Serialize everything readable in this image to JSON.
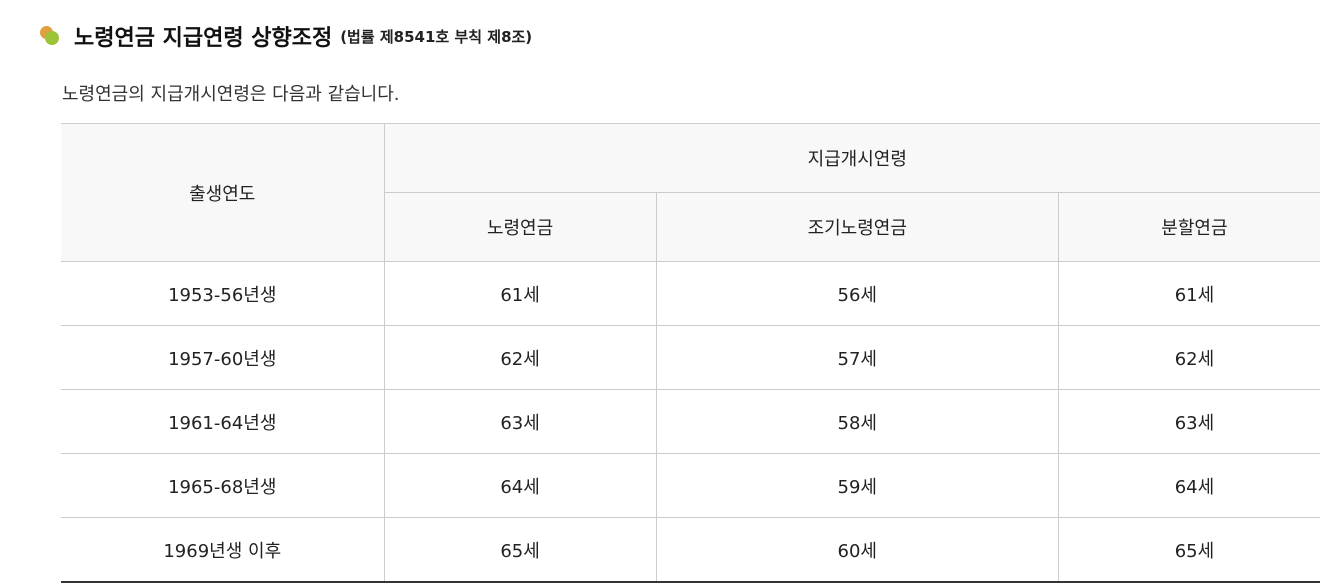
{
  "title": {
    "main": "노령연금 지급연령 상향조정",
    "sub": "(법률 제8541호 부칙 제8조)"
  },
  "description": "노령연금의 지급개시연령은 다음과 같습니다.",
  "table": {
    "header_birth": "출생연도",
    "header_group": "지급개시연령",
    "columns": [
      "노령연금",
      "조기노령연금",
      "분할연금"
    ],
    "rows": [
      [
        "1953-56년생",
        "61세",
        "56세",
        "61세"
      ],
      [
        "1957-60년생",
        "62세",
        "57세",
        "62세"
      ],
      [
        "1961-64년생",
        "63세",
        "58세",
        "63세"
      ],
      [
        "1965-68년생",
        "64세",
        "59세",
        "64세"
      ],
      [
        "1969년생 이후",
        "65세",
        "60세",
        "65세"
      ]
    ]
  }
}
